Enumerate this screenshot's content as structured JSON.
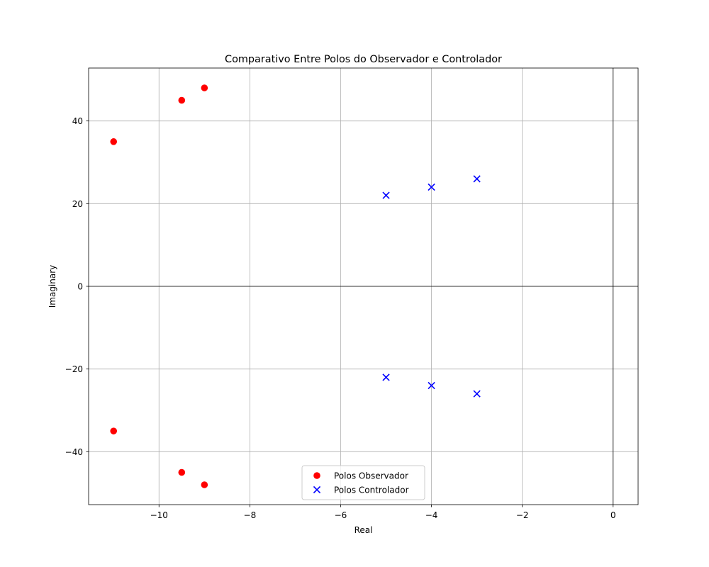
{
  "chart_data": {
    "type": "scatter",
    "title": "Comparativo Entre Polos do Observador e Controlador",
    "xlabel": "Real",
    "ylabel": "Imaginary",
    "xlim": [
      -11.55,
      0.55
    ],
    "ylim": [
      -52.8,
      52.8
    ],
    "xticks": [
      -10,
      -8,
      -6,
      -4,
      -2,
      0
    ],
    "yticks": [
      -40,
      -20,
      0,
      20,
      40
    ],
    "xtick_labels": [
      "−10",
      "−8",
      "−6",
      "−4",
      "−2",
      "0"
    ],
    "ytick_labels": [
      "−40",
      "−20",
      "0",
      "20",
      "40"
    ],
    "grid": true,
    "zero_lines": true,
    "legend_position": "lower-center",
    "series": [
      {
        "name": "Polos Observador",
        "marker": "circle",
        "color": "#ff0000",
        "points": [
          {
            "x": -11,
            "y": 35
          },
          {
            "x": -11,
            "y": -35
          },
          {
            "x": -9.5,
            "y": 45
          },
          {
            "x": -9.5,
            "y": -45
          },
          {
            "x": -9,
            "y": 48
          },
          {
            "x": -9,
            "y": -48
          }
        ]
      },
      {
        "name": "Polos Controlador",
        "marker": "x",
        "color": "#0000ff",
        "points": [
          {
            "x": -5,
            "y": 22
          },
          {
            "x": -5,
            "y": -22
          },
          {
            "x": -4,
            "y": 24
          },
          {
            "x": -4,
            "y": -24
          },
          {
            "x": -3,
            "y": 26
          },
          {
            "x": -3,
            "y": -26
          }
        ]
      }
    ]
  }
}
